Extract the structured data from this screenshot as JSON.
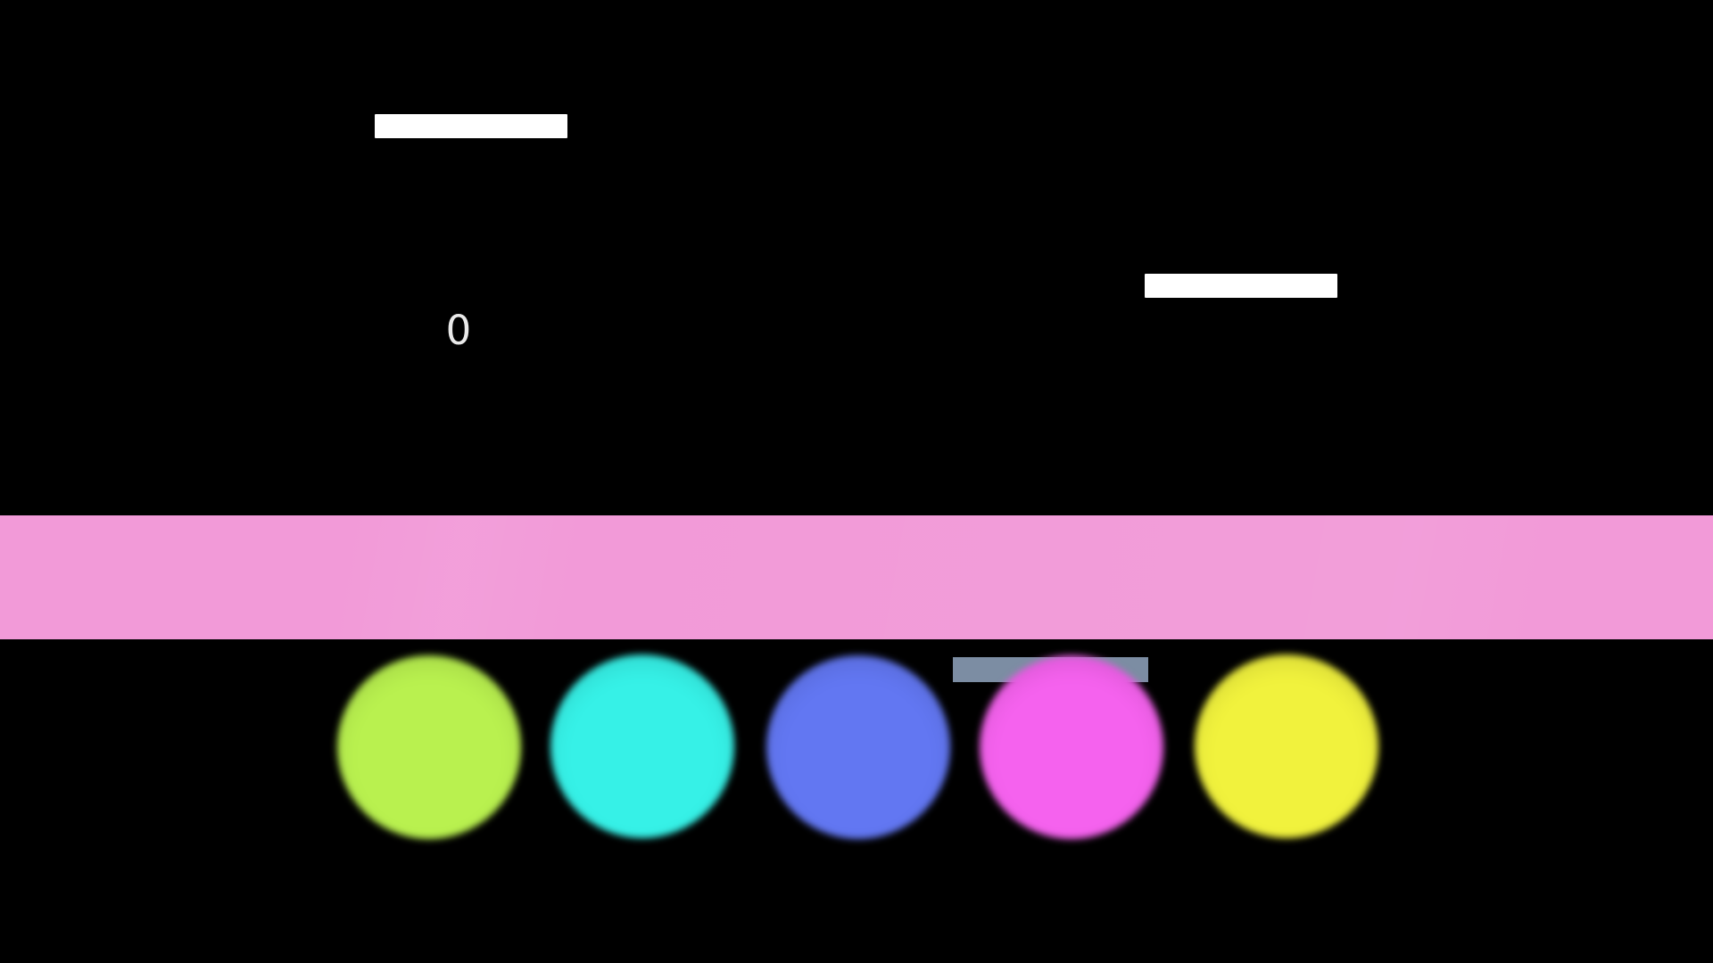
{
  "screen": {
    "background_color": "#000000"
  },
  "scoreboard": {
    "score": "0",
    "color": "#e9e9e9"
  },
  "platforms": {
    "left": {
      "color": "#ffffff"
    },
    "right": {
      "color": "#ffffff"
    },
    "ghost": {
      "color": "#7c8da3"
    }
  },
  "band": {
    "color": "#f29ad8"
  },
  "balls": [
    {
      "name": "lime",
      "color": "#b9f14f"
    },
    {
      "name": "cyan",
      "color": "#36f1e7"
    },
    {
      "name": "blue",
      "color": "#6277f2"
    },
    {
      "name": "magenta",
      "color": "#f562ee"
    },
    {
      "name": "yellow",
      "color": "#f1f23d"
    }
  ]
}
